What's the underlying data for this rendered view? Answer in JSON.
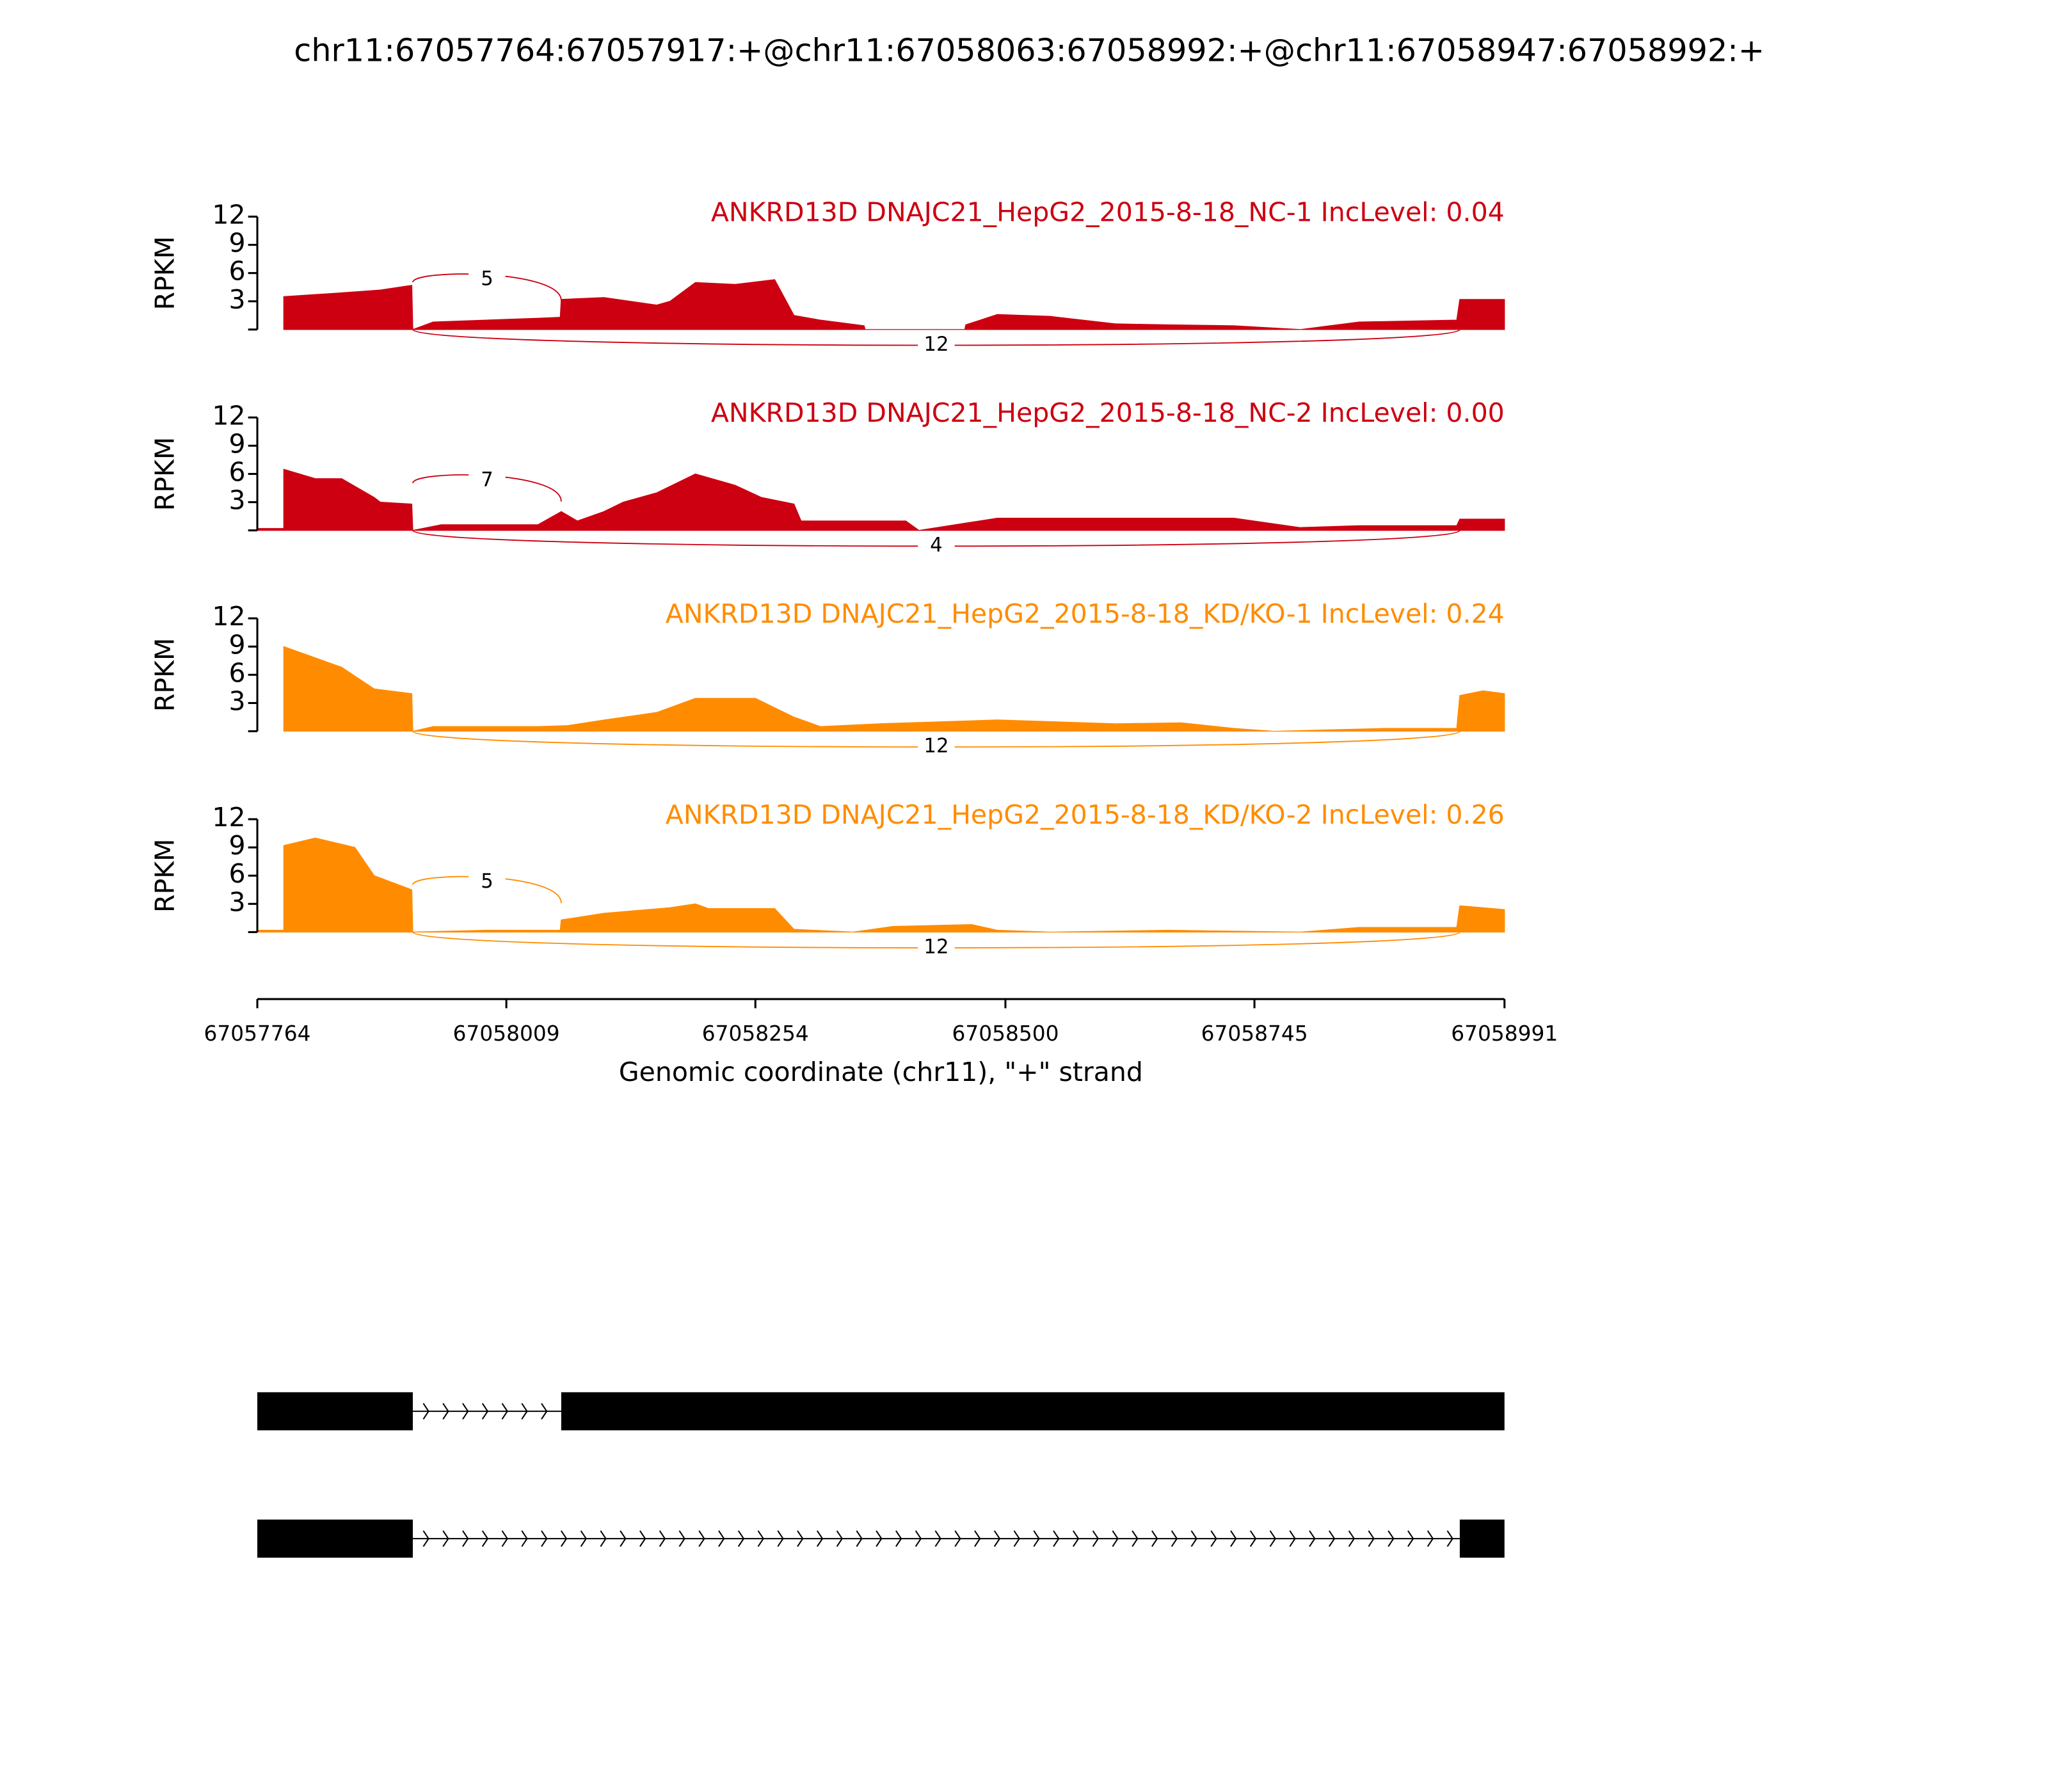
{
  "chart_data": {
    "type": "sashimi",
    "title": "chr11:67057764:67057917:+@chr11:67058063:67058992:+@chr11:67058947:67058992:+",
    "xlabel": "Genomic coordinate (chr11), \"+\" strand",
    "ylabel": "RPKM",
    "xlim": [
      67057764,
      67058991
    ],
    "xticks": [
      67057764,
      67058009,
      67058254,
      67058500,
      67058745,
      67058991
    ],
    "ylim": [
      0,
      12
    ],
    "yticks": [
      3,
      6,
      9,
      12
    ],
    "tracks": [
      {
        "label": "ANKRD13D DNAJC21_HepG2_2015-8-18_NC-1 IncLevel: 0.04",
        "color": "#cc0011",
        "x": [
          67057790,
          67057790,
          67057847,
          67057885,
          67057916,
          67057917,
          67057937,
          67058040,
          67058062,
          67058063,
          67058105,
          67058157,
          67058170,
          67058195,
          67058234,
          67058273,
          67058292,
          67058318,
          67058361,
          67058362,
          67058460,
          67058461,
          67058492,
          67058544,
          67058609,
          67058660,
          67058725,
          67058790,
          67058848,
          67058944,
          67058947,
          67058991
        ],
        "values": [
          0,
          3.5,
          3.9,
          4.2,
          4.7,
          0,
          0.8,
          1.2,
          1.3,
          3.2,
          3.4,
          2.6,
          3.0,
          5.0,
          4.8,
          5.3,
          1.5,
          1.0,
          0.4,
          0,
          0,
          0.5,
          1.6,
          1.4,
          0.6,
          0.5,
          0.4,
          0,
          0.8,
          1.0,
          3.2,
          3.2
        ],
        "junctions": [
          {
            "start": 67057917,
            "end": 67058063,
            "count": 5,
            "side": "top"
          },
          {
            "start": 67057917,
            "end": 67058947,
            "count": 12,
            "side": "bottom"
          }
        ]
      },
      {
        "label": "ANKRD13D DNAJC21_HepG2_2015-8-18_NC-2 IncLevel: 0.00",
        "color": "#cc0011",
        "x": [
          67057764,
          67057790,
          67057790,
          67057821,
          67057847,
          67057879,
          67057885,
          67057916,
          67057917,
          67057945,
          67058040,
          67058063,
          67058079,
          67058105,
          67058124,
          67058157,
          67058195,
          67058234,
          67058260,
          67058292,
          67058299,
          67058402,
          67058415,
          67058492,
          67058725,
          67058790,
          67058848,
          67058944,
          67058947,
          67058991
        ],
        "values": [
          0.2,
          0.2,
          6.5,
          5.5,
          5.5,
          3.5,
          3.0,
          2.8,
          0,
          0.6,
          0.6,
          2.0,
          1.0,
          2.0,
          3.0,
          4.0,
          6.0,
          4.8,
          3.5,
          2.8,
          1.0,
          1.0,
          0,
          1.3,
          1.3,
          0.3,
          0.5,
          0.5,
          1.2,
          1.2
        ],
        "junctions": [
          {
            "start": 67057917,
            "end": 67058063,
            "count": 7,
            "side": "top"
          },
          {
            "start": 67057917,
            "end": 67058947,
            "count": 4,
            "side": "bottom"
          }
        ]
      },
      {
        "label": "ANKRD13D DNAJC21_HepG2_2015-8-18_KD/KO-1 IncLevel: 0.24",
        "color": "#ff8c00",
        "x": [
          67057790,
          67057790,
          67057847,
          67057879,
          67057916,
          67057917,
          67057937,
          67058040,
          67058069,
          67058105,
          67058157,
          67058195,
          67058254,
          67058292,
          67058318,
          67058376,
          67058492,
          67058609,
          67058673,
          67058725,
          67058764,
          67058873,
          67058944,
          67058947,
          67058970,
          67058991
        ],
        "values": [
          0,
          9.0,
          6.8,
          4.5,
          4.0,
          0,
          0.5,
          0.5,
          0.6,
          1.2,
          2.0,
          3.5,
          3.5,
          1.5,
          0.5,
          0.8,
          1.2,
          0.8,
          0.9,
          0.3,
          0,
          0.3,
          0.3,
          3.8,
          4.3,
          4.0
        ],
        "junctions": [
          {
            "start": 67057917,
            "end": 67058947,
            "count": 12,
            "side": "bottom"
          }
        ]
      },
      {
        "label": "ANKRD13D DNAJC21_HepG2_2015-8-18_KD/KO-2 IncLevel: 0.26",
        "color": "#ff8c00",
        "x": [
          67057764,
          67057790,
          67057790,
          67057821,
          67057860,
          67057879,
          67057916,
          67057917,
          67057989,
          67058062,
          67058063,
          67058105,
          67058170,
          67058195,
          67058208,
          67058273,
          67058292,
          67058350,
          67058389,
          67058467,
          67058492,
          67058544,
          67058660,
          67058790,
          67058848,
          67058944,
          67058947,
          67058991
        ],
        "values": [
          0.2,
          0.2,
          9.2,
          10.0,
          9.0,
          6.0,
          4.5,
          0,
          0.2,
          0.2,
          1.3,
          2.0,
          2.6,
          3.0,
          2.5,
          2.5,
          0.3,
          0,
          0.6,
          0.8,
          0.2,
          0,
          0.2,
          0,
          0.5,
          0.5,
          2.8,
          2.4
        ],
        "junctions": [
          {
            "start": 67057917,
            "end": 67058063,
            "count": 5,
            "side": "top"
          },
          {
            "start": 67057917,
            "end": 67058947,
            "count": 12,
            "side": "bottom"
          }
        ]
      }
    ],
    "transcripts": [
      {
        "exons": [
          [
            67057764,
            67057917
          ],
          [
            67058063,
            67058991
          ]
        ]
      },
      {
        "exons": [
          [
            67057764,
            67057917
          ],
          [
            67058947,
            67058991
          ]
        ]
      }
    ]
  }
}
